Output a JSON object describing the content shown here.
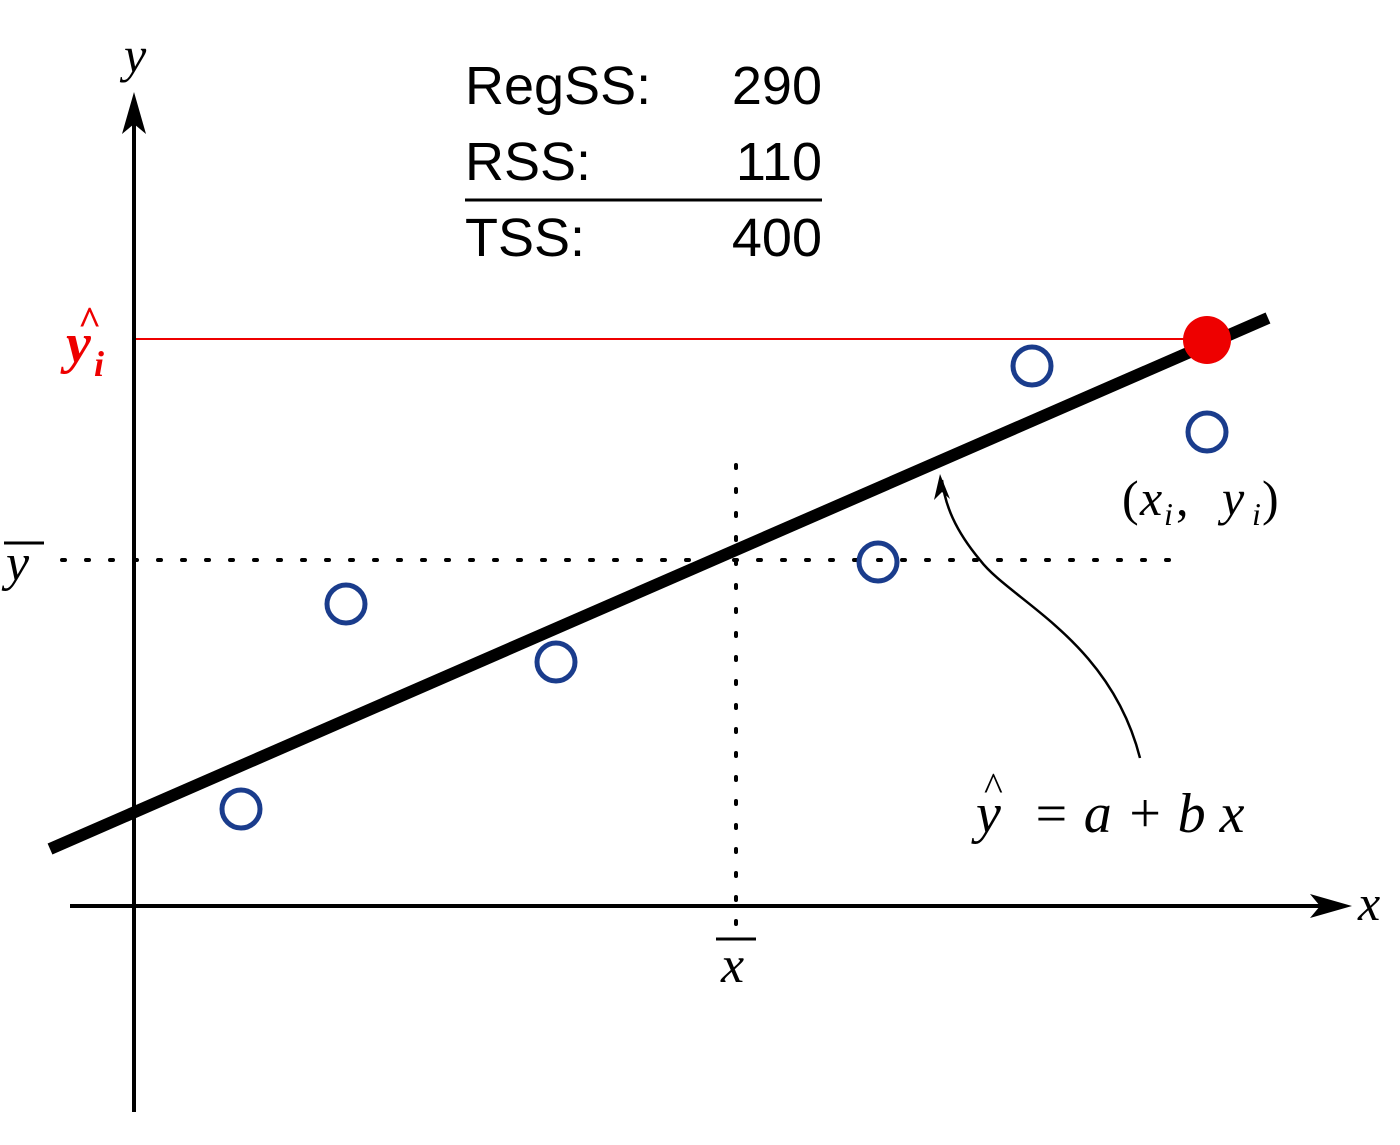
{
  "sums_table": {
    "rows": [
      {
        "label": "RegSS:",
        "value": "290"
      },
      {
        "label": "RSS:",
        "value": "110"
      },
      {
        "label": "TSS:",
        "value": "400"
      }
    ]
  },
  "axes": {
    "y_label": "y",
    "x_label": "x"
  },
  "labels": {
    "y_hat_i_base": "y",
    "y_hat_i_sub": "i",
    "y_hat_i_hat": "^",
    "y_bar": "y",
    "x_bar": "x",
    "point_label": {
      "open": "(",
      "x": "x",
      "x_sub": "i",
      "comma": " , ",
      "y": "y",
      "y_sub": "i",
      "close": ")"
    },
    "equation": {
      "y": "y",
      "hat": "^",
      "rest": "= a + b x"
    }
  },
  "colors": {
    "axis": "#000000",
    "regression_line": "#000000",
    "observed_points": "#1a3c8c",
    "fitted_point": "#ee0000",
    "fitted_guide": "#ee0000"
  }
}
